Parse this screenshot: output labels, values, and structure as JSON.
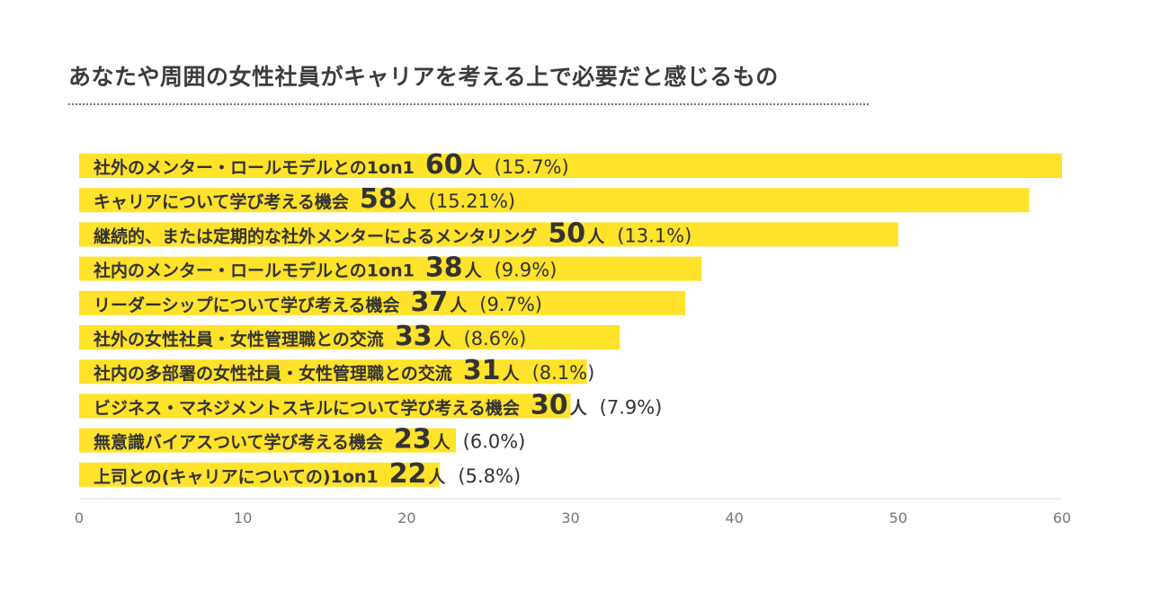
{
  "chart_data": {
    "type": "bar",
    "orientation": "horizontal",
    "title": "あなたや周囲の女性社員がキャリアを考える上で必要だと感じるもの",
    "bar_color": "#ffe22a",
    "text_color": "#333333",
    "xlim": [
      0,
      60
    ],
    "xticks": [
      "0",
      "10",
      "20",
      "30",
      "40",
      "50",
      "60"
    ],
    "grid": false,
    "unit": "人",
    "bars": [
      {
        "label": "社外のメンター・ロールモデルとの1on1",
        "value": 60,
        "percent": "(15.7%)"
      },
      {
        "label": "キャリアについて学び考える機会",
        "value": 58,
        "percent": "(15.21%)"
      },
      {
        "label": "継続的、または定期的な社外メンターによるメンタリング",
        "value": 50,
        "percent": "(13.1%)"
      },
      {
        "label": "社内のメンター・ロールモデルとの1on1",
        "value": 38,
        "percent": "(9.9%)"
      },
      {
        "label": "リーダーシップについて学び考える機会",
        "value": 37,
        "percent": "(9.7%)"
      },
      {
        "label": "社外の女性社員・女性管理職との交流",
        "value": 33,
        "percent": "(8.6%)"
      },
      {
        "label": "社内の多部署の女性社員・女性管理職との交流",
        "value": 31,
        "percent": "(8.1%)"
      },
      {
        "label": "ビジネス・マネジメントスキルについて学び考える機会",
        "value": 30,
        "percent": "(7.9%)"
      },
      {
        "label": "無意識バイアスついて学び考える機会",
        "value": 23,
        "percent": "(6.0%)"
      },
      {
        "label": "上司との(キャリアについての)1on1",
        "value": 22,
        "percent": "(5.8%)"
      }
    ]
  }
}
